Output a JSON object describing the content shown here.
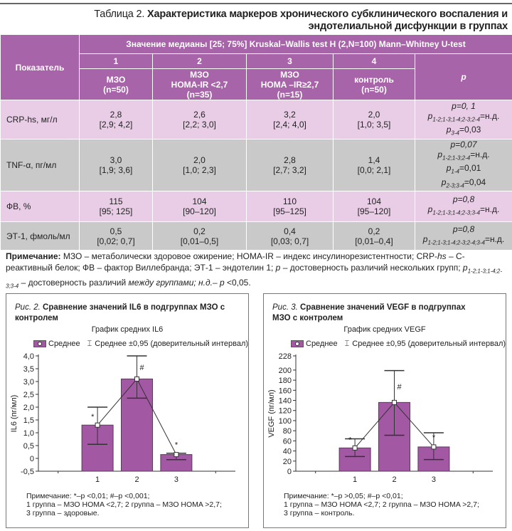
{
  "table": {
    "caption_prefix": "Таблица 2.",
    "caption": "Характеристика маркеров хронического субклинического воспаления и эндотелиальной дисфункции в группах",
    "header": {
      "indicator": "Показатель",
      "span_title": "Значение медианы [25; 75%] Kruskal–Wallis test H (2,N=100) Mann–Whitney U-test",
      "group_numbers": [
        "1",
        "2",
        "3",
        "4"
      ],
      "groups": [
        {
          "l1": "МЗО",
          "l2": "",
          "n": "(n=50)"
        },
        {
          "l1": "МЗО",
          "l2": "HOMA-IR <2,7",
          "n": "(n=35)"
        },
        {
          "l1": "МЗО",
          "l2": "HOMA –IR≥2,7",
          "n": "(n=15)"
        },
        {
          "l1": "контроль",
          "l2": "",
          "n": "(n=50)"
        }
      ],
      "p": "p"
    },
    "rows": [
      {
        "name": "CRP-hs, мг/л",
        "vals": [
          [
            "2,8",
            "[2,9; 4,2]"
          ],
          [
            "2,6",
            "[2,2; 3,0]"
          ],
          [
            "3,2",
            "[2,4; 4,0]"
          ],
          [
            "2,0",
            "[1,0; 3,5]"
          ]
        ],
        "p": [
          [
            "p=0, 1",
            ""
          ],
          [
            "p",
            "1-2;1-3;1-4;2-3;2-4",
            "=н.д."
          ],
          [
            "p",
            "3-4",
            "=0,03"
          ]
        ]
      },
      {
        "name": "TNF-α, пг/мл",
        "vals": [
          [
            "3,0",
            "[1,9; 3,6]"
          ],
          [
            "2,0",
            "[1,0; 2,3]"
          ],
          [
            "2,8",
            "[2,7; 3,2]"
          ],
          [
            "1,4",
            "[0,0; 2,1]"
          ]
        ],
        "p": [
          [
            "p=0,07",
            ""
          ],
          [
            "p",
            "1-2;1-3;2-4",
            "=н.д."
          ],
          [
            "p",
            "1-4",
            "=0,01"
          ],
          [
            "p",
            "2-3;3-4",
            "=0,04"
          ]
        ]
      },
      {
        "name": "ФВ, %",
        "vals": [
          [
            "115",
            "[95; 125]"
          ],
          [
            "104",
            "[90–120]"
          ],
          [
            "110",
            "[95–125]"
          ],
          [
            "104",
            "[95–120]"
          ]
        ],
        "p": [
          [
            "p=0,8",
            ""
          ],
          [
            "p",
            "1-2;1-3;1-4;2-3;3-4",
            "=н.д."
          ]
        ]
      },
      {
        "name": "ЭТ-1, фмоль/мл",
        "vals": [
          [
            "0,5",
            "[0,02; 0,7]"
          ],
          [
            "0,2",
            "[0,01–0,5]"
          ],
          [
            "0,4",
            "[0,03; 0,7]"
          ],
          [
            "0,2",
            "[0,01–0,4]"
          ]
        ],
        "p": [
          [
            "p=0,8",
            ""
          ],
          [
            "p",
            "1-2;1-3;1-4;2-3;2-4;3-4",
            "=н.д."
          ]
        ]
      }
    ]
  },
  "note": {
    "label": "Примечание:",
    "text1": " МЗО – метаболически здоровое ожирение; HOMA-IR – индекс инсулинорезистентности; CRP-",
    "hs": "hs",
    "text2": " – С-реактивный белок; ФВ – фактор Виллебранда; ЭТ-1 – эндотелин 1; ",
    "p": "p",
    "text3": " – достоверность различий нескольких групп; ",
    "p2": "p",
    "sub": "1-2;1-3;1-4;2-3;3-4",
    "text4": " – достоверность различий ",
    "italic": "между группами; н.д.– p",
    "text5": " <0,05."
  },
  "figures": [
    {
      "prefix": "Рис. 2.",
      "title": "Сравнение значений IL6 в подгруппах МЗО с контролем",
      "legend_mean": "Среднее",
      "legend_ci": "Среднее ±0,95 (доверительный интервал)",
      "note": [
        "Примечание: *–p <0,01; #–p <0,001;",
        "1 группа – МЗО HOMA <2,7; 2 группа – МЗО HOMA >2,7;",
        "3 группа – здоровые."
      ]
    },
    {
      "prefix": "Рис. 3.",
      "title": "Сравнение значений VEGF в подгруппах МЗО с контролем",
      "legend_mean": "Среднее",
      "legend_ci": "Среднее ±0,95 (доверительный интервал)",
      "note": [
        "Примечание: *–p >0,05; #–p <0,01;",
        "1 группа – МЗО HOMA <2,7; 2 группа – МЗО HOMA >2,7;",
        "3 группа – контроль."
      ]
    }
  ],
  "chart_data": [
    {
      "type": "bar",
      "title": "График средних IL6",
      "ylabel": "IL6 (пг/мл)",
      "xlabel": "",
      "categories": [
        "1",
        "2",
        "3"
      ],
      "values": [
        1.3,
        3.1,
        0.15
      ],
      "ci_low": [
        0.55,
        2.35,
        -0.05
      ],
      "ci_high": [
        2.0,
        4.0,
        0.2
      ],
      "markers": [
        "*",
        "#",
        "*"
      ],
      "ylim": [
        -0.5,
        4.0
      ],
      "yticks": [
        -0.5,
        0,
        0.5,
        1.0,
        1.5,
        2.0,
        2.5,
        3.0,
        3.5,
        4.0
      ],
      "ytick_labels": [
        "-0,5",
        "0",
        "0,5",
        "1,0",
        "1,5",
        "2,0",
        "2,5",
        "3,0",
        "3,5",
        "4,0"
      ],
      "color": "#a358a3"
    },
    {
      "type": "bar",
      "title": "График средних VEGF",
      "ylabel": "VEGF (пг/мл)",
      "xlabel": "",
      "categories": [
        "1",
        "2",
        "3"
      ],
      "values": [
        46,
        136,
        48
      ],
      "ci_low": [
        29,
        71,
        23
      ],
      "ci_high": [
        64,
        199,
        76
      ],
      "markers": [
        "*",
        "#",
        "*"
      ],
      "ylim": [
        0,
        228
      ],
      "yticks": [
        0,
        20,
        40,
        60,
        80,
        100,
        120,
        140,
        160,
        180,
        200,
        228
      ],
      "ytick_labels": [
        "0",
        "20",
        "40",
        "60",
        "80",
        "100",
        "120",
        "140",
        "160",
        "180",
        "200",
        "228"
      ],
      "color": "#a358a3"
    }
  ]
}
